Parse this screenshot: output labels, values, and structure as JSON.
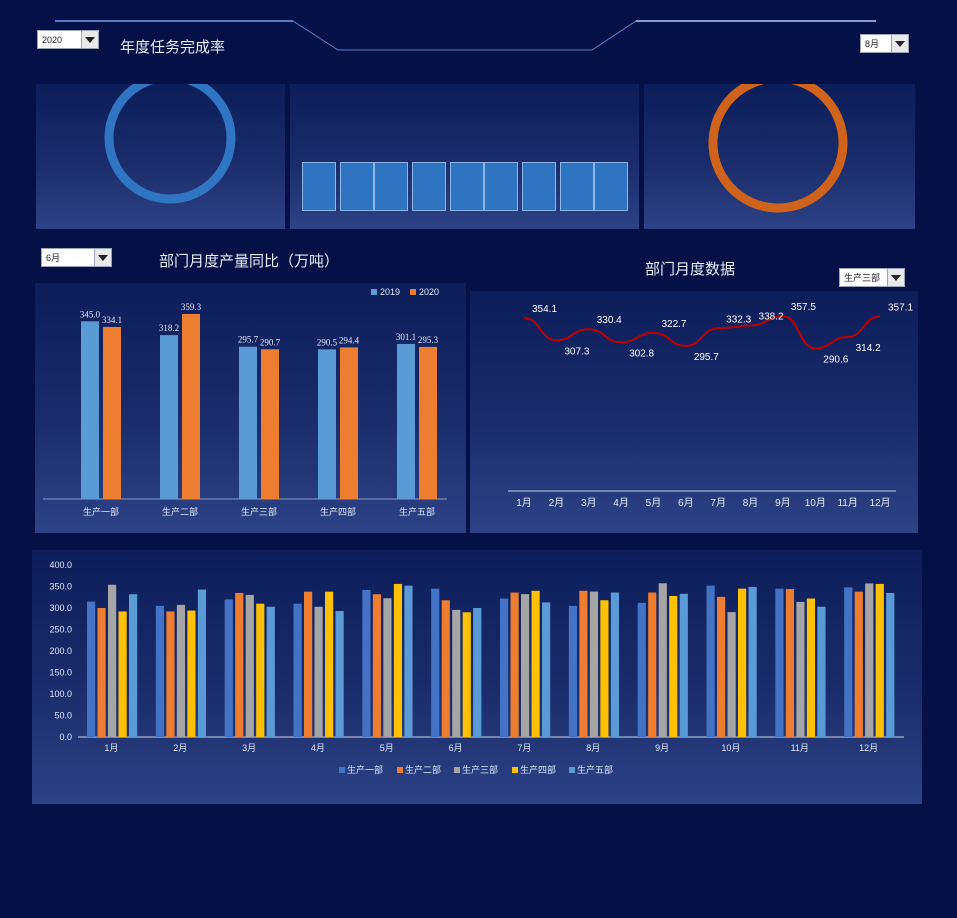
{
  "header": {
    "year_select": {
      "value": "2020"
    },
    "title": "年度任务完成率",
    "month_select": {
      "value": "8月"
    }
  },
  "colors": {
    "background": "#041046",
    "ring_blue": "#2f75c1",
    "ring_orange": "#d0631b",
    "bar_2019": "#5b9bd5",
    "bar_2020": "#ed7d31",
    "line_red": "#c00000",
    "dept1": "#4472c4",
    "dept2": "#ed7d31",
    "dept3": "#a5a5a5",
    "dept4": "#ffc000",
    "dept5": "#5b9bd5"
  },
  "kpi": {
    "annual_ring_fill": 0.99,
    "month_ring_fill": 0.99,
    "tiles_count": 9
  },
  "compare_panel": {
    "month_select": {
      "value": "6月"
    },
    "title": "部门月度产量同比（万吨）"
  },
  "monthly_panel": {
    "title": "部门月度数据",
    "dept_select": {
      "value": "生产三部"
    }
  },
  "chart_data": [
    {
      "type": "bar",
      "categories": [
        "生产一部",
        "生产二部",
        "生产三部",
        "生产四部",
        "生产五部"
      ],
      "series": [
        {
          "name": "2019",
          "values": [
            345.0,
            318.2,
            295.7,
            290.5,
            301.1
          ]
        },
        {
          "name": "2020",
          "values": [
            334.1,
            359.3,
            290.7,
            294.4,
            295.3
          ]
        }
      ],
      "data_labels": [
        [
          "345.0",
          "318.2",
          "295.7",
          "290.5",
          "301.1"
        ],
        [
          "334.1",
          "359.3",
          "290.7",
          "294.4",
          "295.3"
        ]
      ],
      "legend": "top-right",
      "grid": false
    },
    {
      "type": "line",
      "categories": [
        "1月",
        "2月",
        "3月",
        "4月",
        "5月",
        "6月",
        "7月",
        "8月",
        "9月",
        "10月",
        "11月",
        "12月"
      ],
      "values": [
        354.1,
        307.3,
        330.4,
        302.8,
        322.7,
        295.7,
        332.3,
        338.2,
        357.5,
        290.6,
        314.2,
        357.1
      ],
      "data_labels": [
        "354.1",
        "307.3",
        "330.4",
        "302.8",
        "322.7",
        "295.7",
        "332.3",
        "338.2",
        "357.5",
        "290.6",
        "314.2",
        "357.1"
      ],
      "smooth": true,
      "grid": false
    },
    {
      "type": "bar",
      "categories": [
        "1月",
        "2月",
        "3月",
        "4月",
        "5月",
        "6月",
        "7月",
        "8月",
        "9月",
        "10月",
        "11月",
        "12月"
      ],
      "series": [
        {
          "name": "生产一部",
          "values": [
            315,
            305,
            320,
            310,
            342,
            345,
            322,
            305,
            312,
            352,
            345,
            348
          ]
        },
        {
          "name": "生产二部",
          "values": [
            300,
            292,
            335,
            338,
            332,
            318,
            336,
            340,
            336,
            326,
            344,
            338
          ]
        },
        {
          "name": "生产三部",
          "values": [
            354.1,
            307.3,
            330.4,
            302.8,
            322.7,
            295.7,
            332.3,
            338.2,
            357.5,
            290.6,
            314.2,
            357.1
          ]
        },
        {
          "name": "生产四部",
          "values": [
            292,
            294,
            310,
            338,
            356,
            290,
            340,
            318,
            328,
            345,
            322,
            356
          ]
        },
        {
          "name": "生产五部",
          "values": [
            332,
            343,
            303,
            293,
            352,
            300,
            313,
            336,
            333,
            349,
            303,
            335
          ]
        }
      ],
      "ylim": [
        0,
        400
      ],
      "yticks": [
        "0.0",
        "50.0",
        "100.0",
        "150.0",
        "200.0",
        "250.0",
        "300.0",
        "350.0",
        "400.0"
      ],
      "legend": "bottom",
      "grid": false
    }
  ]
}
